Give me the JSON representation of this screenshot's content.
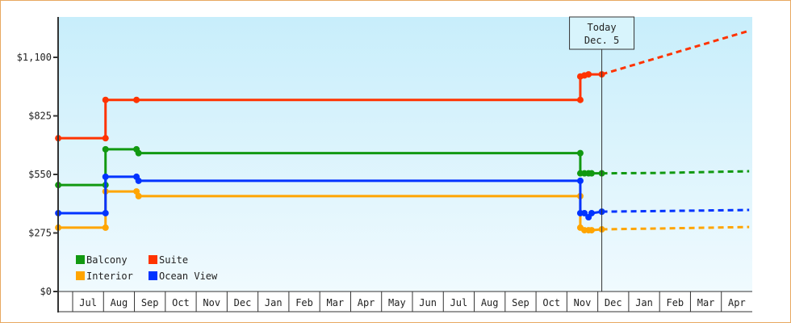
{
  "chart_data": {
    "type": "line",
    "title": "",
    "xlabel": "",
    "ylabel": "",
    "ylim": [
      0,
      1100
    ],
    "y_ticks": [
      "$0",
      "$275",
      "$550",
      "$825",
      "$1,100"
    ],
    "y_tick_values": [
      0,
      275,
      550,
      825,
      1100
    ],
    "x_tick_labels": [
      "Jul",
      "Aug",
      "Sep",
      "Oct",
      "Nov",
      "Dec",
      "Jan",
      "Feb",
      "Mar",
      "Apr",
      "May",
      "Jun",
      "Jul",
      "Aug",
      "Sep",
      "Oct",
      "Nov",
      "Dec",
      "Jan",
      "Feb",
      "Mar",
      "Apr"
    ],
    "x_range": [
      "2023-06-17",
      "2025-04-28"
    ],
    "grid": false,
    "legend_placement": "bottom-left",
    "today_marker": {
      "line1": "Today",
      "line2": "Dec. 5",
      "date": "2024-12-05"
    },
    "series": [
      {
        "name": "Balcony",
        "color": "#119911",
        "points": [
          [
            "2023-06-17",
            500
          ],
          [
            "2023-08-03",
            500
          ],
          [
            "2023-08-03",
            668
          ],
          [
            "2023-09-03",
            668
          ],
          [
            "2023-09-05",
            650
          ],
          [
            "2024-11-14",
            650
          ],
          [
            "2024-11-14",
            555
          ],
          [
            "2024-11-18",
            555
          ],
          [
            "2024-11-22",
            555
          ],
          [
            "2024-11-25",
            555
          ],
          [
            "2024-12-05",
            555
          ]
        ],
        "forecast": [
          [
            "2024-12-05",
            555
          ],
          [
            "2025-02-01",
            557
          ],
          [
            "2025-04-28",
            565
          ]
        ]
      },
      {
        "name": "Suite",
        "color": "#ff3300",
        "points": [
          [
            "2023-06-17",
            720
          ],
          [
            "2023-08-03",
            720
          ],
          [
            "2023-08-03",
            900
          ],
          [
            "2023-09-03",
            900
          ],
          [
            "2024-11-14",
            900
          ],
          [
            "2024-11-14",
            1010
          ],
          [
            "2024-11-18",
            1015
          ],
          [
            "2024-11-22",
            1020
          ],
          [
            "2024-12-05",
            1020
          ]
        ],
        "forecast": [
          [
            "2024-12-05",
            1020
          ],
          [
            "2025-04-28",
            1225
          ]
        ]
      },
      {
        "name": "Interior",
        "color": "#ffa500",
        "points": [
          [
            "2023-06-17",
            300
          ],
          [
            "2023-08-03",
            300
          ],
          [
            "2023-08-03",
            470
          ],
          [
            "2023-09-03",
            470
          ],
          [
            "2023-09-05",
            448
          ],
          [
            "2024-11-14",
            448
          ],
          [
            "2024-11-14",
            300
          ],
          [
            "2024-11-18",
            288
          ],
          [
            "2024-11-22",
            288
          ],
          [
            "2024-11-25",
            288
          ],
          [
            "2024-12-05",
            292
          ]
        ],
        "forecast": [
          [
            "2024-12-05",
            292
          ],
          [
            "2025-02-01",
            296
          ],
          [
            "2025-04-28",
            303
          ]
        ]
      },
      {
        "name": "Ocean View",
        "color": "#0033ff",
        "points": [
          [
            "2023-06-17",
            368
          ],
          [
            "2023-08-03",
            368
          ],
          [
            "2023-08-03",
            539
          ],
          [
            "2023-09-03",
            539
          ],
          [
            "2023-09-05",
            520
          ],
          [
            "2024-11-14",
            520
          ],
          [
            "2024-11-14",
            368
          ],
          [
            "2024-11-18",
            368
          ],
          [
            "2024-11-22",
            349
          ],
          [
            "2024-11-25",
            368
          ],
          [
            "2024-12-05",
            375
          ]
        ],
        "forecast": [
          [
            "2024-12-05",
            375
          ],
          [
            "2025-02-01",
            378
          ],
          [
            "2025-04-28",
            383
          ]
        ]
      }
    ],
    "legend_order": [
      "Balcony",
      "Suite",
      "Interior",
      "Ocean View"
    ]
  }
}
